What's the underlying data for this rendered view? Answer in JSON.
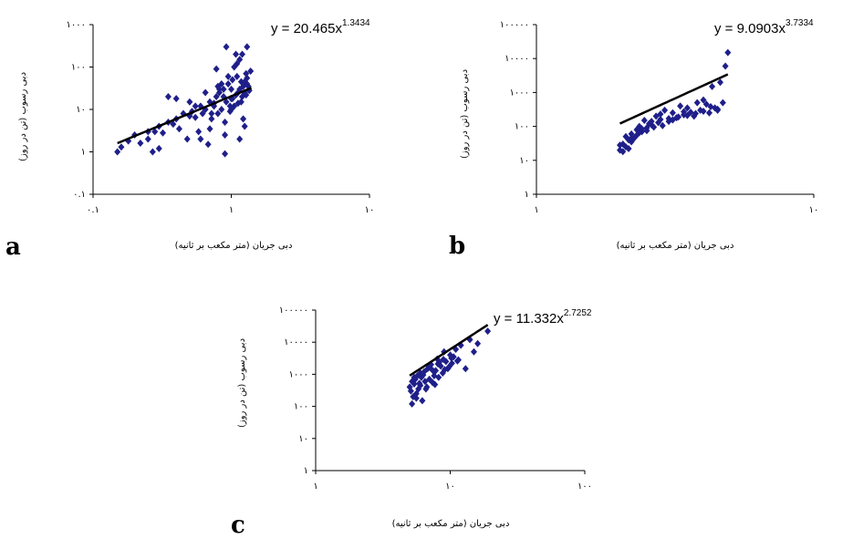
{
  "charts": {
    "a": {
      "letter": "a",
      "xlabel": "دبی جریان (متر مکعب بر ثانیه)",
      "ylabel": "دبی رسوب (تن در روز)",
      "xticks": [
        "۰.۱",
        "۱",
        "۱۰"
      ],
      "yticks": [
        "۰.۱",
        "۱",
        "۱۰",
        "۱۰۰",
        "۱۰۰۰"
      ],
      "eq_base": "y = 20.465x",
      "eq_exp": "1.3434"
    },
    "b": {
      "letter": "b",
      "xlabel": "دبی جریان (متر مکعب بر ثانیه)",
      "ylabel": "دبی رسوب (تن در روز)",
      "xticks": [
        "۱",
        "۱۰"
      ],
      "yticks": [
        "۱",
        "۱۰",
        "۱۰۰",
        "۱۰۰۰",
        "۱۰۰۰۰",
        "۱۰۰۰۰۰"
      ],
      "eq_base": "y = 9.0903x",
      "eq_exp": "3.7334"
    },
    "c": {
      "letter": "c",
      "xlabel": "دبی جریان (متر مکعب بر ثانیه)",
      "ylabel": "دبی رسوب (تن در روز)",
      "xticks": [
        "۱",
        "۱۰",
        "۱۰۰"
      ],
      "yticks": [
        "۱",
        "۱۰",
        "۱۰۰",
        "۱۰۰۰",
        "۱۰۰۰۰",
        "۱۰۰۰۰۰"
      ],
      "eq_base": "y = 11.332x",
      "eq_exp": "2.7252"
    }
  },
  "colors": {
    "points": "#1f1f8a",
    "trend": "#000000",
    "axis": "#000000"
  },
  "chart_data": [
    {
      "type": "scatter",
      "xscale": "log",
      "yscale": "log",
      "xlim": [
        0.1,
        10
      ],
      "ylim": [
        0.1,
        1000
      ],
      "trendline": {
        "a": 20.465,
        "b": 1.3434,
        "x_range": [
          0.15,
          1.4
        ]
      },
      "x": [
        0.15,
        0.16,
        0.18,
        0.2,
        0.22,
        0.25,
        0.27,
        0.3,
        0.3,
        0.32,
        0.35,
        0.38,
        0.4,
        0.42,
        0.45,
        0.48,
        0.5,
        0.52,
        0.55,
        0.58,
        0.6,
        0.62,
        0.65,
        0.68,
        0.7,
        0.72,
        0.75,
        0.78,
        0.8,
        0.82,
        0.85,
        0.88,
        0.9,
        0.92,
        0.95,
        0.98,
        1.0,
        1.02,
        1.05,
        1.08,
        1.1,
        1.12,
        1.15,
        1.18,
        1.2,
        1.22,
        1.25,
        1.28,
        1.3,
        1.35,
        1.38,
        0.6,
        0.7,
        0.75,
        0.85,
        0.9,
        1.0,
        1.1,
        1.2,
        1.3,
        0.5,
        0.65,
        0.8,
        0.95,
        1.05,
        1.15,
        1.25,
        0.4,
        0.55,
        0.72,
        0.88,
        1.0,
        1.12,
        1.3,
        0.78,
        0.92,
        1.08,
        1.18,
        1.28,
        0.82,
        0.98,
        1.02,
        1.22,
        1.33,
        0.35,
        0.28,
        0.25,
        0.9,
        1.15,
        1.25
      ],
      "y": [
        1.0,
        1.3,
        1.8,
        2.5,
        1.6,
        3.0,
        1.0,
        4.0,
        1.2,
        2.8,
        5.0,
        4.5,
        6.0,
        3.5,
        8.0,
        2.0,
        7.0,
        9.0,
        6.5,
        3.0,
        12.0,
        8.0,
        10.0,
        1.5,
        15.0,
        6.0,
        12.0,
        20.0,
        8.0,
        25.0,
        10.0,
        30.0,
        5.0,
        15.0,
        40.0,
        9.0,
        18.0,
        50.0,
        12.0,
        22.0,
        60.0,
        14.0,
        30.0,
        45.0,
        20.0,
        35.0,
        25.0,
        70.0,
        40.0,
        28.0,
        80.0,
        2.0,
        3.5,
        14.0,
        40.0,
        2.5,
        30.0,
        120.0,
        200.0,
        300.0,
        15.0,
        25.0,
        35.0,
        60.0,
        100.0,
        150.0,
        45.0,
        18.0,
        12.0,
        8.0,
        20.0,
        10.0,
        25.0,
        55.0,
        90.0,
        300.0,
        200.0,
        15.0,
        22.0,
        30.0,
        12.0,
        18.0,
        6.0,
        35.0,
        20.0,
        3.0,
        2.0,
        0.9,
        2.0,
        4.0
      ]
    },
    {
      "type": "scatter",
      "xscale": "log",
      "yscale": "log",
      "xlim": [
        1,
        10
      ],
      "ylim": [
        1,
        100000
      ],
      "trendline": {
        "a": 9.0903,
        "b": 3.7334,
        "x_range": [
          2.0,
          4.9
        ]
      },
      "x": [
        2.0,
        2.05,
        2.1,
        2.1,
        2.15,
        2.2,
        2.2,
        2.25,
        2.3,
        2.3,
        2.35,
        2.4,
        2.45,
        2.5,
        2.55,
        2.6,
        2.7,
        2.75,
        2.8,
        2.9,
        3.0,
        3.1,
        3.2,
        3.3,
        3.4,
        3.5,
        3.6,
        3.7,
        3.8,
        3.9,
        4.0,
        4.1,
        4.2,
        4.3,
        4.4,
        4.5,
        4.6,
        4.7,
        4.8,
        4.9,
        2.05,
        2.15,
        2.35,
        2.5,
        2.65,
        2.85,
        3.0,
        3.25,
        3.5,
        3.75,
        4.0,
        4.25,
        4.5,
        2.0,
        2.2,
        2.4,
        2.6,
        2.8,
        3.1,
        3.4
      ],
      "y": [
        20,
        30,
        25,
        50,
        40,
        60,
        35,
        45,
        80,
        55,
        100,
        70,
        150,
        90,
        120,
        110,
        200,
        130,
        160,
        300,
        140,
        250,
        180,
        400,
        220,
        350,
        260,
        200,
        500,
        300,
        280,
        450,
        250,
        1500,
        350,
        300,
        2000,
        500,
        6000,
        15000,
        18,
        22,
        65,
        75,
        95,
        105,
        170,
        190,
        210,
        240,
        600,
        380,
        320,
        28,
        45,
        85,
        140,
        230,
        155,
        270
      ]
    },
    {
      "type": "scatter",
      "xscale": "log",
      "yscale": "log",
      "xlim": [
        1,
        100
      ],
      "ylim": [
        1,
        100000
      ],
      "trendline": {
        "a": 11.332,
        "b": 2.7252,
        "x_range": [
          5.0,
          19.0
        ]
      },
      "x": [
        5.0,
        5.1,
        5.2,
        5.3,
        5.4,
        5.5,
        5.6,
        5.7,
        5.8,
        5.9,
        6.0,
        6.1,
        6.2,
        6.4,
        6.5,
        6.7,
        6.8,
        7.0,
        7.2,
        7.4,
        7.6,
        7.8,
        8.0,
        8.2,
        8.5,
        8.8,
        9.0,
        9.3,
        9.6,
        10.0,
        10.3,
        10.6,
        11.0,
        11.5,
        12.0,
        13.0,
        14.0,
        15.0,
        16.0,
        19.0,
        5.2,
        5.6,
        6.0,
        6.6,
        7.1,
        7.7,
        8.3,
        9.1,
        10.2,
        11.3,
        5.4,
        5.9,
        6.3,
        6.9,
        7.5,
        8.1,
        8.9,
        9.8
      ],
      "y": [
        400,
        300,
        600,
        200,
        500,
        700,
        250,
        900,
        350,
        1000,
        450,
        800,
        150,
        1200,
        600,
        400,
        1500,
        700,
        2000,
        550,
        900,
        1300,
        3000,
        800,
        1800,
        1100,
        5000,
        2500,
        1500,
        4000,
        2200,
        3500,
        6000,
        2800,
        8000,
        1500,
        12000,
        5000,
        9000,
        22000,
        120,
        180,
        1100,
        350,
        1600,
        480,
        2400,
        1400,
        3200,
        2600,
        800,
        520,
        950,
        1800,
        1250,
        2100,
        2900,
        1700
      ]
    }
  ]
}
